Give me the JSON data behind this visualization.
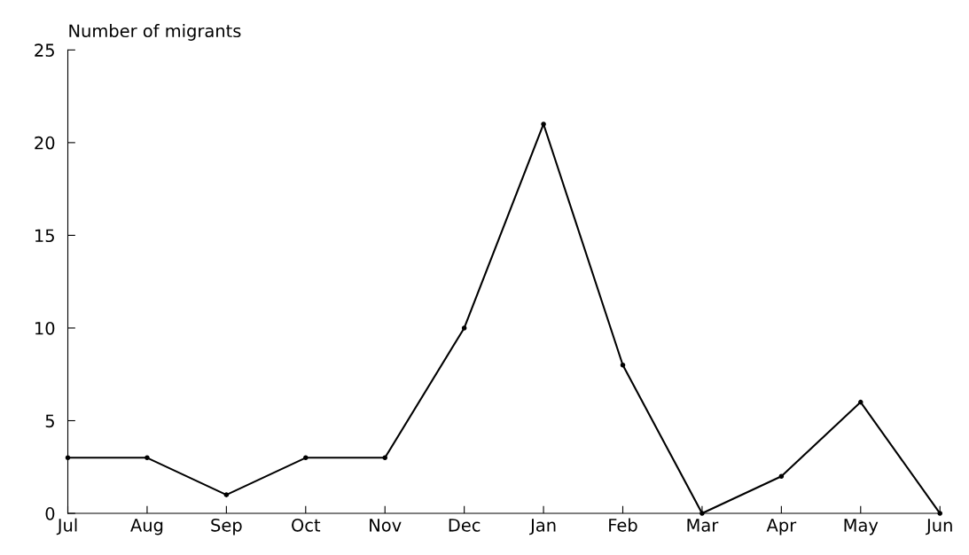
{
  "chart_data": {
    "type": "line",
    "ylabel": "Number of migrants",
    "categories": [
      "Jul",
      "Aug",
      "Sep",
      "Oct",
      "Nov",
      "Dec",
      "Jan",
      "Feb",
      "Mar",
      "Apr",
      "May",
      "Jun"
    ],
    "series": [
      {
        "color": "#000000",
        "values": [
          3,
          3,
          1,
          3,
          3,
          10,
          21,
          8,
          0,
          2,
          6,
          0
        ]
      }
    ],
    "ylim": [
      0,
      25
    ],
    "yticks": [
      0,
      5,
      10,
      15,
      20,
      25
    ],
    "marker": "circle",
    "line_style": "solid"
  }
}
